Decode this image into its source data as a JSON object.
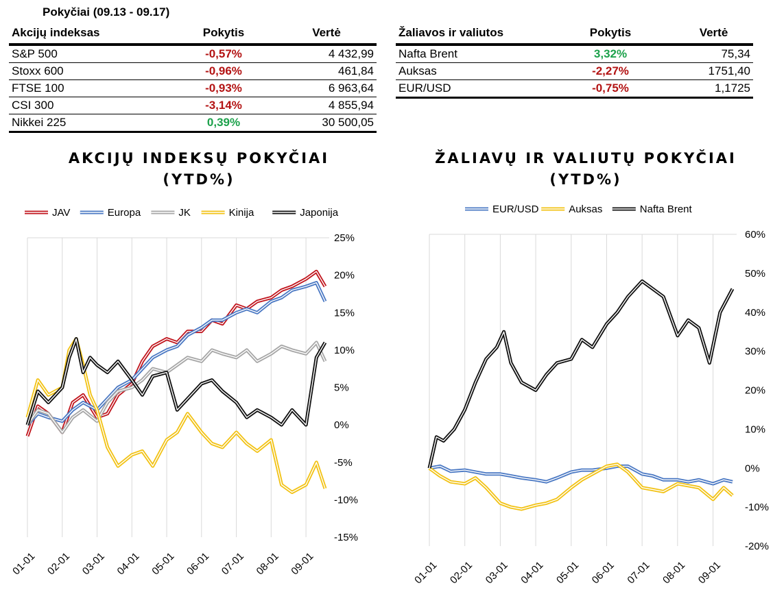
{
  "period_title": "Pokyčiai (09.13 - 09.17)",
  "equity_table": {
    "headers": [
      "Akcijų indeksas",
      "Pokytis",
      "Vertė"
    ],
    "rows": [
      {
        "name": "S&P 500",
        "change": "-0,57%",
        "value": "4 432,99",
        "direction": "neg"
      },
      {
        "name": "Stoxx 600",
        "change": "-0,96%",
        "value": "461,84",
        "direction": "neg"
      },
      {
        "name": "FTSE 100",
        "change": "-0,93%",
        "value": "6 963,64",
        "direction": "neg"
      },
      {
        "name": "CSI 300",
        "change": "-3,14%",
        "value": "4 855,94",
        "direction": "neg"
      },
      {
        "name": "Nikkei 225",
        "change": "0,39%",
        "value": "30 500,05",
        "direction": "pos"
      }
    ]
  },
  "commodity_table": {
    "headers": [
      "Žaliavos ir valiutos",
      "Pokytis",
      "Vertė"
    ],
    "rows": [
      {
        "name": "Nafta Brent",
        "change": "3,32%",
        "value": "75,34",
        "direction": "pos"
      },
      {
        "name": "Auksas",
        "change": "-2,27%",
        "value": "1751,40",
        "direction": "neg"
      },
      {
        "name": "EUR/USD",
        "change": "-0,75%",
        "value": "1,1725",
        "direction": "neg"
      }
    ]
  },
  "colors": {
    "JAV": "#c0141c",
    "Europa": "#4a78c3",
    "JK": "#a6a6a6",
    "Kinija": "#f2c214",
    "Japonija": "#111111",
    "EUR/USD": "#4a78c3",
    "Auksas": "#f2c214",
    "Nafta Brent": "#111111",
    "negative": "#b31313",
    "positive": "#1ca14b"
  },
  "chart_data": [
    {
      "type": "line",
      "title_line1": "AKCIJŲ INDEKSŲ POKYČIAI",
      "title_line2": "(YTD%)",
      "x_ticks": [
        "01-01",
        "02-01",
        "03-01",
        "04-01",
        "05-01",
        "06-01",
        "07-01",
        "08-01",
        "09-01"
      ],
      "y_ticks": [
        "25%",
        "20%",
        "15%",
        "10%",
        "5%",
        "0%",
        "-5%",
        "-10%",
        "-15%"
      ],
      "ylim": [
        -15,
        25
      ],
      "x_months": [
        0,
        8.55
      ],
      "grid": "vertical",
      "legend": "top",
      "series": [
        {
          "name": "JAV",
          "x": [
            0,
            0.3,
            0.6,
            1.0,
            1.3,
            1.6,
            2.0,
            2.3,
            2.6,
            3.0,
            3.3,
            3.6,
            4.0,
            4.3,
            4.6,
            5.0,
            5.3,
            5.6,
            6.0,
            6.3,
            6.6,
            7.0,
            7.3,
            7.6,
            8.0,
            8.3,
            8.55
          ],
          "y": [
            -1.5,
            2.5,
            1.5,
            -1.0,
            3.0,
            4.0,
            1.0,
            1.5,
            4.0,
            5.5,
            8.5,
            10.5,
            11.5,
            11.0,
            12.5,
            12.5,
            14.0,
            13.5,
            16.0,
            15.5,
            16.5,
            17.0,
            18.0,
            18.5,
            19.5,
            20.5,
            18.5
          ]
        },
        {
          "name": "Europa",
          "x": [
            0,
            0.3,
            0.6,
            1.0,
            1.3,
            1.6,
            2.0,
            2.3,
            2.6,
            3.0,
            3.3,
            3.6,
            4.0,
            4.3,
            4.6,
            5.0,
            5.3,
            5.6,
            6.0,
            6.3,
            6.6,
            7.0,
            7.3,
            7.6,
            8.0,
            8.3,
            8.55
          ],
          "y": [
            0,
            1.5,
            1.0,
            0.5,
            2.0,
            3.0,
            2.0,
            3.5,
            5.0,
            6.0,
            7.5,
            9.0,
            10.0,
            10.5,
            12.0,
            13.0,
            14.0,
            14.0,
            15.0,
            15.5,
            15.0,
            16.5,
            17.0,
            18.0,
            18.5,
            19.0,
            16.5
          ]
        },
        {
          "name": "JK",
          "x": [
            0,
            0.3,
            0.6,
            1.0,
            1.3,
            1.6,
            2.0,
            2.3,
            2.6,
            3.0,
            3.3,
            3.6,
            4.0,
            4.3,
            4.6,
            5.0,
            5.3,
            5.6,
            6.0,
            6.3,
            6.6,
            7.0,
            7.3,
            7.6,
            8.0,
            8.3,
            8.55
          ],
          "y": [
            0,
            2.0,
            1.5,
            -1.0,
            1.0,
            2.0,
            0.5,
            3.0,
            4.5,
            5.0,
            6.0,
            7.5,
            7.0,
            8.0,
            9.0,
            8.5,
            10.0,
            9.5,
            9.0,
            10.0,
            8.5,
            9.5,
            10.5,
            10.0,
            9.5,
            11.0,
            8.5
          ]
        },
        {
          "name": "Kinija",
          "x": [
            0,
            0.3,
            0.6,
            1.0,
            1.2,
            1.4,
            1.6,
            1.8,
            2.0,
            2.3,
            2.6,
            3.0,
            3.3,
            3.6,
            4.0,
            4.3,
            4.6,
            5.0,
            5.3,
            5.6,
            6.0,
            6.3,
            6.6,
            7.0,
            7.3,
            7.6,
            8.0,
            8.3,
            8.55
          ],
          "y": [
            1.0,
            6.0,
            4.0,
            5.0,
            10.0,
            11.5,
            8.0,
            4.0,
            2.0,
            -3.0,
            -5.5,
            -4.0,
            -3.5,
            -5.5,
            -2.0,
            -1.0,
            1.5,
            -1.0,
            -2.5,
            -3.0,
            -1.0,
            -2.5,
            -3.5,
            -2.0,
            -8.0,
            -9.0,
            -8.0,
            -5.0,
            -8.5
          ]
        },
        {
          "name": "Japonija",
          "x": [
            0,
            0.3,
            0.6,
            1.0,
            1.2,
            1.4,
            1.6,
            1.8,
            2.0,
            2.3,
            2.6,
            3.0,
            3.3,
            3.6,
            4.0,
            4.3,
            4.6,
            5.0,
            5.3,
            5.6,
            6.0,
            6.3,
            6.6,
            7.0,
            7.3,
            7.6,
            8.0,
            8.3,
            8.55
          ],
          "y": [
            0.0,
            4.5,
            3.0,
            5.0,
            9.0,
            11.5,
            7.0,
            9.0,
            8.0,
            7.0,
            8.5,
            6.0,
            4.0,
            6.5,
            7.0,
            2.0,
            3.5,
            5.5,
            6.0,
            4.5,
            3.0,
            1.0,
            2.0,
            1.0,
            0.0,
            2.0,
            0.0,
            9.0,
            11.0
          ]
        }
      ]
    },
    {
      "type": "line",
      "title_line1": "ŽALIAVŲ IR VALIUTŲ POKYČIAI",
      "title_line2": "(YTD%)",
      "x_ticks": [
        "01-01",
        "02-01",
        "03-01",
        "04-01",
        "05-01",
        "06-01",
        "07-01",
        "08-01",
        "09-01"
      ],
      "y_ticks": [
        "60%",
        "50%",
        "40%",
        "30%",
        "20%",
        "10%",
        "0%",
        "-10%",
        "-20%"
      ],
      "ylim": [
        -20,
        60
      ],
      "x_months": [
        0,
        8.55
      ],
      "grid": "vertical",
      "legend": "top",
      "series": [
        {
          "name": "EUR/USD",
          "x": [
            0,
            0.3,
            0.6,
            1.0,
            1.3,
            1.6,
            2.0,
            2.3,
            2.6,
            3.0,
            3.3,
            3.6,
            4.0,
            4.3,
            4.6,
            5.0,
            5.3,
            5.6,
            6.0,
            6.3,
            6.6,
            7.0,
            7.3,
            7.6,
            8.0,
            8.3,
            8.55
          ],
          "y": [
            0,
            0.5,
            -0.8,
            -0.5,
            -1.0,
            -1.5,
            -1.5,
            -2.0,
            -2.5,
            -3.0,
            -3.5,
            -2.5,
            -1.0,
            -0.5,
            -0.5,
            0.0,
            0.5,
            0.5,
            -1.5,
            -2.0,
            -3.0,
            -3.0,
            -3.5,
            -3.0,
            -4.0,
            -3.0,
            -3.5
          ]
        },
        {
          "name": "Auksas",
          "x": [
            0,
            0.3,
            0.6,
            1.0,
            1.3,
            1.6,
            2.0,
            2.3,
            2.6,
            3.0,
            3.3,
            3.6,
            4.0,
            4.3,
            4.6,
            5.0,
            5.3,
            5.6,
            6.0,
            6.3,
            6.6,
            7.0,
            7.3,
            7.6,
            8.0,
            8.3,
            8.55
          ],
          "y": [
            0,
            -2.0,
            -3.5,
            -4.0,
            -2.5,
            -5.0,
            -9.0,
            -10.0,
            -10.5,
            -9.5,
            -9.0,
            -8.0,
            -5.0,
            -3.0,
            -1.5,
            0.5,
            1.0,
            -1.0,
            -5.0,
            -5.5,
            -6.0,
            -4.0,
            -4.5,
            -5.0,
            -8.0,
            -5.0,
            -7.0
          ]
        },
        {
          "name": "Nafta Brent",
          "x": [
            0,
            0.2,
            0.4,
            0.7,
            1.0,
            1.3,
            1.6,
            1.9,
            2.1,
            2.3,
            2.6,
            3.0,
            3.3,
            3.6,
            4.0,
            4.3,
            4.6,
            5.0,
            5.3,
            5.6,
            6.0,
            6.3,
            6.6,
            7.0,
            7.3,
            7.6,
            7.9,
            8.2,
            8.55
          ],
          "y": [
            0,
            8.0,
            7.0,
            10.0,
            15.0,
            22.0,
            28.0,
            31.0,
            35.0,
            27.0,
            22.0,
            20.0,
            24.0,
            27.0,
            28.0,
            33.0,
            31.0,
            37.0,
            40.0,
            44.0,
            48.0,
            46.0,
            44.0,
            34.0,
            38.0,
            36.0,
            27.0,
            40.0,
            46.0
          ]
        }
      ]
    }
  ]
}
